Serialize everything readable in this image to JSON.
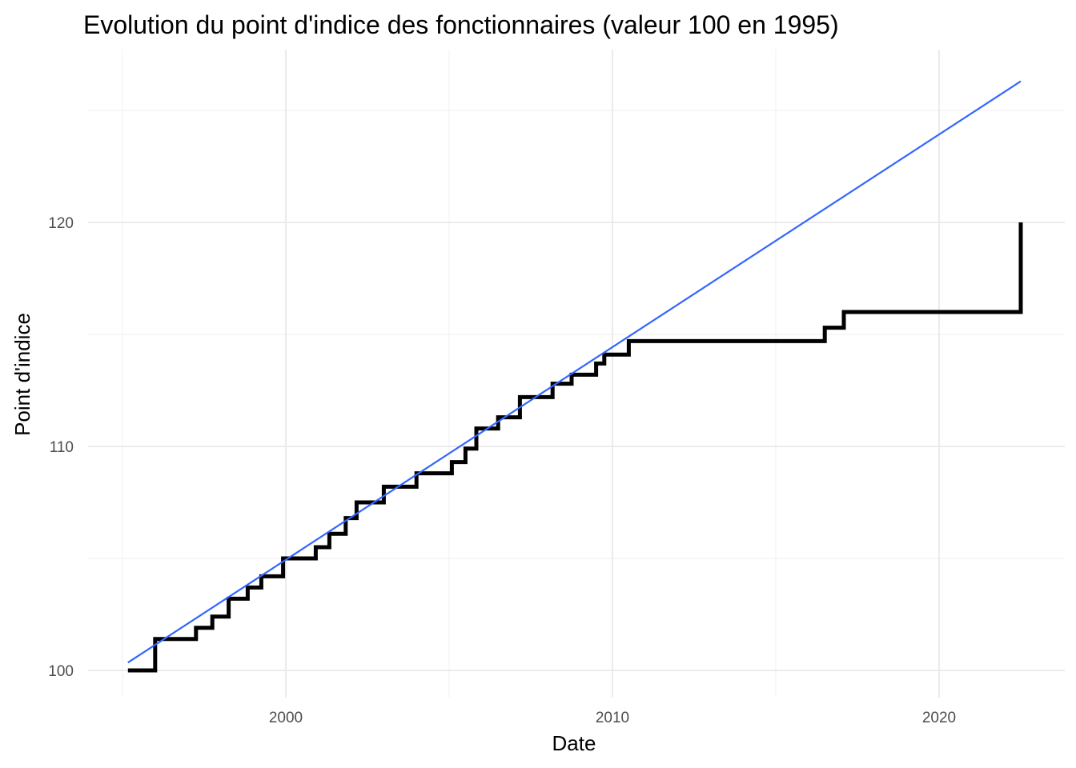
{
  "chart_data": {
    "type": "line",
    "title": "Evolution du point d'indice des fonctionnaires (valeur 100 en 1995)",
    "xlabel": "Date",
    "ylabel": "Point d'indice",
    "x_ticks": [
      2000,
      2010,
      2020
    ],
    "y_ticks": [
      100,
      110,
      120
    ],
    "xlim": [
      1994.0,
      2024.0
    ],
    "ylim": [
      98.9,
      126.3
    ],
    "grid": true,
    "legend": "none",
    "colors": {
      "step": "#000000",
      "trend": "#3366FF"
    },
    "series": [
      {
        "kind": "step",
        "points": [
          [
            "1995-03-01",
            100.0
          ],
          [
            "1996-01-01",
            101.4
          ],
          [
            "1997-04-01",
            101.9
          ],
          [
            "1997-10-01",
            102.4
          ],
          [
            "1998-04-01",
            103.2
          ],
          [
            "1998-11-01",
            103.7
          ],
          [
            "1999-04-01",
            104.2
          ],
          [
            "1999-12-01",
            105.0
          ],
          [
            "2000-12-01",
            105.5
          ],
          [
            "2001-05-01",
            106.1
          ],
          [
            "2001-11-01",
            106.8
          ],
          [
            "2002-03-01",
            107.5
          ],
          [
            "2003-01-01",
            108.2
          ],
          [
            "2004-01-01",
            108.8
          ],
          [
            "2005-02-01",
            109.3
          ],
          [
            "2005-07-01",
            109.9
          ],
          [
            "2005-11-01",
            110.8
          ],
          [
            "2006-07-01",
            111.3
          ],
          [
            "2007-03-01",
            112.2
          ],
          [
            "2008-03-01",
            112.8
          ],
          [
            "2008-10-01",
            113.2
          ],
          [
            "2009-07-01",
            113.7
          ],
          [
            "2009-10-01",
            114.1
          ],
          [
            "2010-07-01",
            114.7
          ],
          [
            "2016-07-01",
            115.3
          ],
          [
            "2017-02-01",
            116.0
          ],
          [
            "2022-07-01",
            120.0
          ]
        ]
      },
      {
        "kind": "trend",
        "points": [
          [
            "1995-03-01",
            100.35
          ],
          [
            "2022-07-01",
            126.3
          ]
        ]
      }
    ]
  }
}
